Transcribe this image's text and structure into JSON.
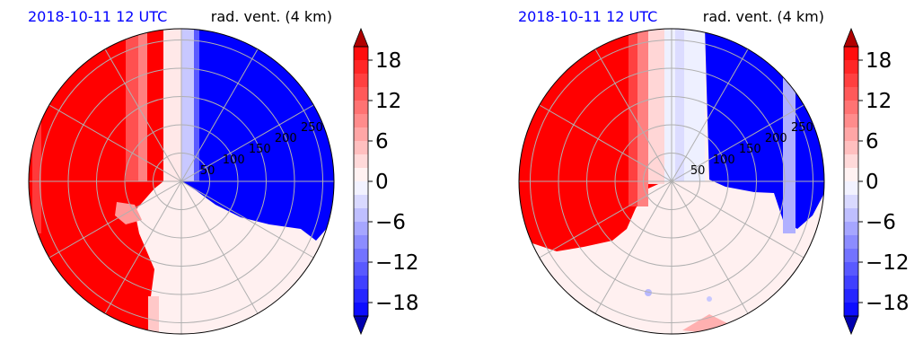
{
  "chart_data": [
    {
      "type": "heatmap",
      "projection": "polar",
      "title_left": "2018-10-11 12 UTC",
      "title_right": "rad. vent. (4 km)",
      "title_left_color": "#0000ff",
      "radial_ticks": [
        "50",
        "100",
        "150",
        "200",
        "250"
      ],
      "radial_values": [
        50,
        100,
        150,
        200,
        250
      ],
      "rmax": 270,
      "grid": true,
      "angular_gridlines_deg": [
        0,
        30,
        60,
        90,
        120,
        150,
        180,
        210,
        240,
        270,
        300,
        330
      ],
      "colorbar": {
        "cmap": "bwr",
        "vmin": -20,
        "vmax": 20,
        "levels": 20,
        "ticks": [
          "18",
          "12",
          "6",
          "0",
          "−6",
          "−12",
          "−18"
        ],
        "tick_values": [
          18,
          12,
          6,
          0,
          -6,
          -12,
          -18
        ],
        "extend": "both"
      }
    },
    {
      "type": "heatmap",
      "projection": "polar",
      "title_left": "2018-10-11 12 UTC",
      "title_right": "rad. vent. (4 km)",
      "title_left_color": "#0000ff",
      "radial_ticks": [
        "50",
        "100",
        "150",
        "200",
        "250"
      ],
      "radial_values": [
        50,
        100,
        150,
        200,
        250
      ],
      "rmax": 270,
      "grid": true,
      "angular_gridlines_deg": [
        0,
        30,
        60,
        90,
        120,
        150,
        180,
        210,
        240,
        270,
        300,
        330
      ],
      "colorbar": {
        "cmap": "bwr",
        "vmin": -20,
        "vmax": 20,
        "levels": 20,
        "ticks": [
          "18",
          "12",
          "6",
          "0",
          "−6",
          "−12",
          "−18"
        ],
        "tick_values": [
          18,
          12,
          6,
          0,
          -6,
          -12,
          -18
        ],
        "extend": "both"
      }
    }
  ]
}
